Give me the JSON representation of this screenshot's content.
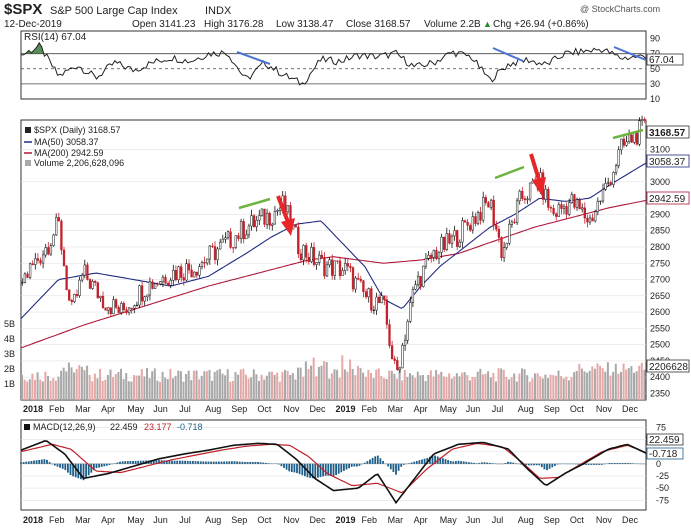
{
  "header": {
    "symbol": "$SPX",
    "name": "S&P 500 Large Cap Index",
    "exchange": "INDX",
    "date": "12-Dec-2019",
    "open": "Open 3141.23",
    "high": "High 3176.28",
    "low": "Low 3138.47",
    "close": "Close 3168.57",
    "volume": "Volume 2.2B",
    "change": "Chg +26.94 (+0.86%)",
    "change_arrow": "▲",
    "watermark": "@ StockCharts.com"
  },
  "chart_data": [
    {
      "type": "line",
      "panel": "rsi",
      "title": "RSI(14) 67.04",
      "ylim": [
        10,
        100
      ],
      "yticks": [
        90,
        70,
        50,
        30,
        10
      ],
      "reference_lines": [
        70,
        50,
        30
      ],
      "current_value_label": "67.04",
      "anchors_x": [
        0,
        0.03,
        0.06,
        0.09,
        0.12,
        0.15,
        0.18,
        0.21,
        0.24,
        0.27,
        0.3,
        0.33,
        0.36,
        0.39,
        0.42,
        0.45,
        0.48,
        0.51,
        0.54,
        0.57,
        0.6,
        0.63,
        0.66,
        0.69,
        0.72,
        0.75,
        0.78,
        0.81,
        0.84,
        0.87,
        0.9,
        0.93,
        0.96,
        1.0
      ],
      "anchors_y": [
        68,
        80,
        40,
        55,
        38,
        58,
        48,
        58,
        65,
        60,
        70,
        72,
        35,
        58,
        42,
        30,
        62,
        60,
        68,
        66,
        70,
        52,
        58,
        72,
        66,
        35,
        56,
        62,
        55,
        70,
        73,
        76,
        64,
        67
      ]
    },
    {
      "type": "line",
      "panel": "price",
      "series": [
        {
          "name": "$SPX (Daily)",
          "label": "$SPX (Daily) 3168.57",
          "color": "#222222",
          "anchors_x": [
            0,
            0.04,
            0.06,
            0.08,
            0.1,
            0.13,
            0.16,
            0.2,
            0.24,
            0.28,
            0.32,
            0.36,
            0.4,
            0.42,
            0.445,
            0.47,
            0.49,
            0.52,
            0.55,
            0.58,
            0.6,
            0.63,
            0.66,
            0.69,
            0.72,
            0.75,
            0.77,
            0.8,
            0.83,
            0.85,
            0.88,
            0.91,
            0.94,
            0.96,
            0.98,
            1.0
          ],
          "anchors_y": [
            2690,
            2800,
            2870,
            2590,
            2720,
            2640,
            2600,
            2680,
            2720,
            2740,
            2800,
            2860,
            2900,
            2930,
            2800,
            2760,
            2740,
            2730,
            2650,
            2620,
            2400,
            2680,
            2780,
            2820,
            2880,
            2940,
            2780,
            2950,
            3000,
            2900,
            2940,
            2880,
            3000,
            3100,
            3140,
            3168
          ]
        },
        {
          "name": "MA(50)",
          "label": "MA(50) 3058.37",
          "color": "#1f2a80",
          "anchors_x": [
            0,
            0.06,
            0.12,
            0.18,
            0.24,
            0.3,
            0.36,
            0.4,
            0.44,
            0.48,
            0.52,
            0.55,
            0.58,
            0.61,
            0.64,
            0.67,
            0.71,
            0.75,
            0.79,
            0.83,
            0.87,
            0.91,
            0.95,
            1.0
          ],
          "anchors_y": [
            2580,
            2700,
            2720,
            2700,
            2680,
            2710,
            2780,
            2830,
            2870,
            2880,
            2800,
            2740,
            2640,
            2610,
            2680,
            2740,
            2800,
            2860,
            2900,
            2950,
            2940,
            2950,
            3000,
            3058
          ]
        },
        {
          "name": "MA(200)",
          "label": "MA(200) 2942.59",
          "color": "#b0193a",
          "anchors_x": [
            0,
            0.1,
            0.2,
            0.3,
            0.4,
            0.46,
            0.5,
            0.54,
            0.58,
            0.64,
            0.7,
            0.76,
            0.82,
            0.88,
            0.94,
            1.0
          ],
          "anchors_y": [
            2490,
            2560,
            2620,
            2680,
            2730,
            2760,
            2770,
            2760,
            2750,
            2760,
            2780,
            2820,
            2860,
            2890,
            2920,
            2943
          ]
        }
      ],
      "volume": {
        "name": "Volume",
        "label": "Volume 2,206,628,096",
        "current_value_label": "2206628",
        "yticks": [
          "5B",
          "4B",
          "3B",
          "2B",
          "1B"
        ]
      },
      "price_ticks": [
        3100,
        3000,
        2900,
        2850,
        2800,
        2750,
        2700,
        2650,
        2600,
        2550,
        2500,
        2450,
        2400,
        2350
      ],
      "value_labels": [
        "3168.57",
        "3058.37",
        "2942.59"
      ],
      "ylim": [
        2330,
        3190
      ]
    },
    {
      "type": "line",
      "panel": "macd",
      "title": "MACD(12,26,9)",
      "values": [
        "22.459",
        "23.177",
        "-0.718"
      ],
      "ylim": [
        -95,
        90
      ],
      "yticks": [
        75,
        50,
        25,
        0,
        -25,
        -50,
        -75
      ],
      "series": [
        {
          "name": "MACD",
          "color": "#111111",
          "anchors_x": [
            0,
            0.04,
            0.07,
            0.1,
            0.14,
            0.18,
            0.22,
            0.26,
            0.3,
            0.34,
            0.38,
            0.41,
            0.44,
            0.47,
            0.5,
            0.54,
            0.57,
            0.6,
            0.63,
            0.66,
            0.7,
            0.74,
            0.78,
            0.81,
            0.84,
            0.87,
            0.9,
            0.94,
            0.97,
            1.0
          ],
          "anchors_y": [
            28,
            48,
            20,
            -30,
            -20,
            -5,
            10,
            20,
            28,
            38,
            42,
            40,
            10,
            -30,
            -55,
            -50,
            -20,
            -80,
            -30,
            20,
            40,
            44,
            30,
            -10,
            -45,
            -20,
            0,
            30,
            40,
            22
          ]
        },
        {
          "name": "Signal",
          "color": "#c0202a",
          "anchors_x": [
            0,
            0.05,
            0.08,
            0.12,
            0.16,
            0.2,
            0.24,
            0.28,
            0.32,
            0.36,
            0.4,
            0.43,
            0.46,
            0.49,
            0.53,
            0.57,
            0.61,
            0.65,
            0.69,
            0.73,
            0.77,
            0.8,
            0.83,
            0.86,
            0.89,
            0.93,
            0.97,
            1.0
          ],
          "anchors_y": [
            25,
            40,
            30,
            -15,
            -18,
            -5,
            8,
            18,
            28,
            36,
            40,
            38,
            15,
            -20,
            -45,
            -40,
            -60,
            -10,
            30,
            42,
            35,
            5,
            -30,
            -28,
            -5,
            25,
            38,
            23
          ]
        }
      ]
    }
  ],
  "x_axis": {
    "months": [
      "2018",
      "Feb",
      "Mar",
      "Apr",
      "May",
      "Jun",
      "Jul",
      "Aug",
      "Sep",
      "Oct",
      "Nov",
      "Dec",
      "2019",
      "Feb",
      "Mar",
      "Apr",
      "May",
      "Jun",
      "Jul",
      "Aug",
      "Sep",
      "Oct",
      "Nov",
      "Dec"
    ]
  },
  "colors": {
    "blue_line": "#1f2a80",
    "red_line": "#b0193a",
    "annot_blue": "#4a74d4",
    "annot_green": "#6db33f",
    "arrow_red": "#e8262a",
    "volume_bar": "#a8a8a8",
    "histogram": "#1e5f8a"
  }
}
